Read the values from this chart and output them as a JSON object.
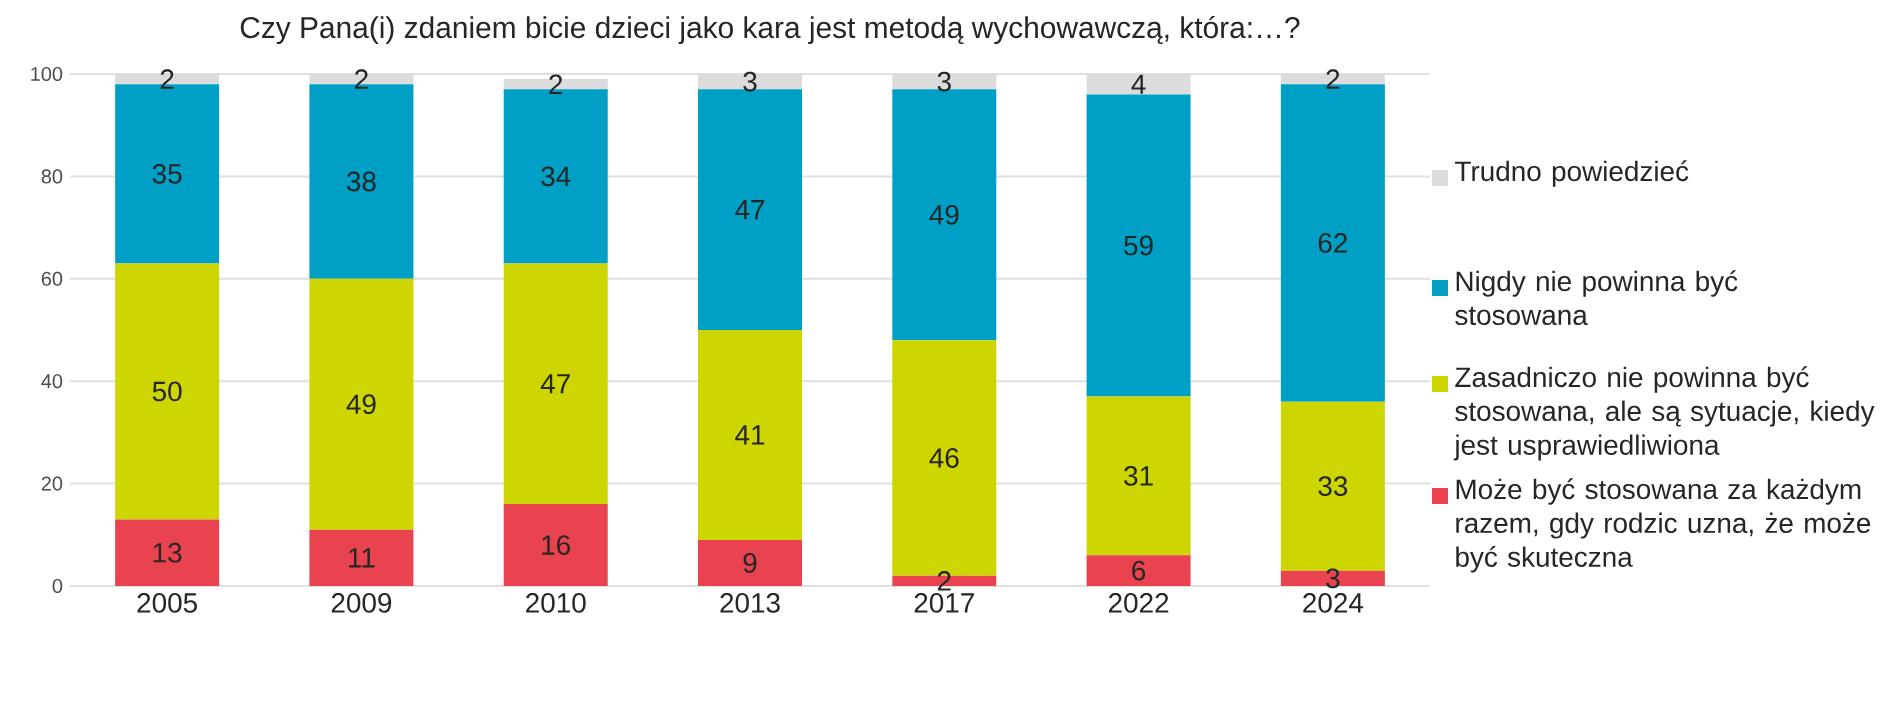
{
  "chart_data": {
    "type": "bar",
    "stacked": true,
    "title": "Czy Pana(i) zdaniem bicie dzieci jako kara jest metodą wychowawczą, która:…?",
    "categories": [
      "2005",
      "2009",
      "2010",
      "2013",
      "2017",
      "2022",
      "2024"
    ],
    "series": [
      {
        "name": "Może być stosowana za każdym razem, gdy rodzic uzna, że może być skuteczna",
        "color": "#e8434f",
        "values": [
          13,
          11,
          16,
          9,
          2,
          6,
          3
        ]
      },
      {
        "name": "Zasadniczo nie powinna być stosowana, ale są sytuacje, kiedy jest usprawiedliwiona",
        "color": "#cdd600",
        "values": [
          50,
          49,
          47,
          41,
          46,
          31,
          33
        ]
      },
      {
        "name": "Nigdy nie powinna być stosowana",
        "color": "#00a0c6",
        "values": [
          35,
          38,
          34,
          47,
          49,
          59,
          62
        ]
      },
      {
        "name": "Trudno powiedzieć",
        "color": "#dcdcdc",
        "values": [
          2,
          2,
          2,
          3,
          3,
          4,
          2
        ]
      }
    ],
    "ylim": [
      0,
      100
    ],
    "yticks": [
      0,
      20,
      40,
      60,
      80,
      100
    ],
    "grid": "y",
    "legend": "right",
    "data_labels": true
  }
}
